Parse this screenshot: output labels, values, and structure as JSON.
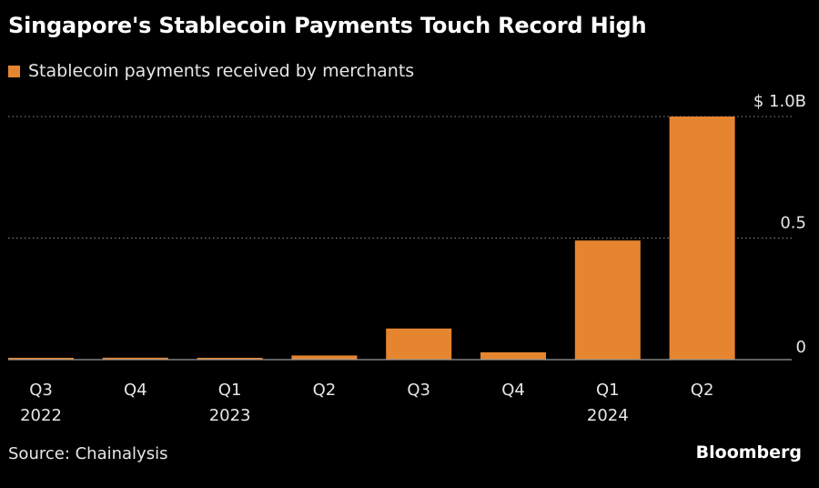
{
  "title": "Singapore's Stablecoin Payments Touch Record High",
  "source": "Source: Chainalysis",
  "brand": "Bloomberg",
  "colors": {
    "background": "#000000",
    "bar": "#e5852f",
    "gridline": "#8a8a8a",
    "baseline": "#9a9a9a",
    "text": "#e6e6e6"
  },
  "chart_data": {
    "type": "bar",
    "categories": [
      "Q3 2022",
      "Q4 2022",
      "Q1 2023",
      "Q2 2023",
      "Q3 2023",
      "Q4 2023",
      "Q1 2024",
      "Q2 2024"
    ],
    "tick_labels": [
      {
        "line1": "Q3",
        "line2": "2022"
      },
      {
        "line1": "Q4",
        "line2": ""
      },
      {
        "line1": "Q1",
        "line2": "2023"
      },
      {
        "line1": "Q2",
        "line2": ""
      },
      {
        "line1": "Q3",
        "line2": ""
      },
      {
        "line1": "Q4",
        "line2": ""
      },
      {
        "line1": "Q1",
        "line2": "2024"
      },
      {
        "line1": "Q2",
        "line2": ""
      }
    ],
    "series": [
      {
        "name": "Stablecoin payments received by merchants",
        "values": [
          0.003,
          0.008,
          0.004,
          0.017,
          0.128,
          0.03,
          0.49,
          1.0
        ]
      }
    ],
    "yticks": [
      {
        "value": 0,
        "label": "0"
      },
      {
        "value": 0.5,
        "label": "0.5"
      },
      {
        "value": 1.0,
        "label": "$ 1.0B"
      }
    ],
    "ylim": [
      0,
      1.0
    ],
    "ylabel": "",
    "xlabel": "",
    "grid": true,
    "legend_position": "top-left",
    "y_axis_position": "right"
  }
}
